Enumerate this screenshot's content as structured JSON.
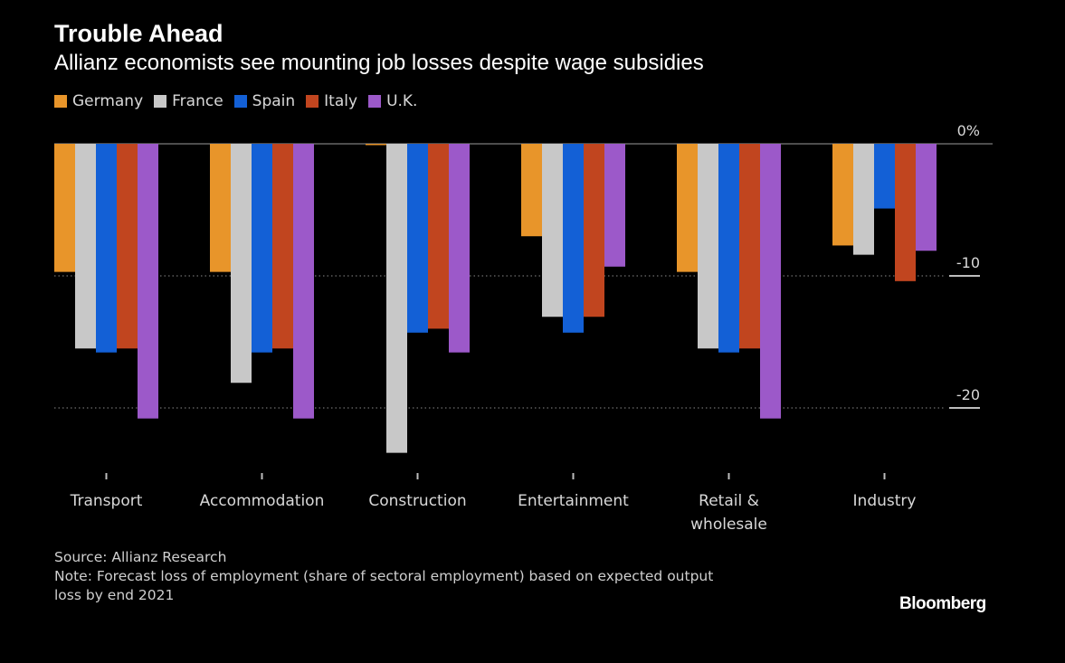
{
  "header": {
    "title": "Trouble Ahead",
    "subtitle": "Allianz economists see mounting job losses despite wage subsidies"
  },
  "footer": {
    "source": "Source: Allianz Research",
    "note_line1": "Note: Forecast loss of employment (share of sectoral employment) based on expected output",
    "note_line2": "loss by end 2021",
    "brand": "Bloomberg"
  },
  "chart_data": {
    "type": "bar",
    "title": "Trouble Ahead",
    "subtitle": "Allianz economists see mounting job losses despite wage subsidies",
    "categories": [
      [
        "Transport"
      ],
      [
        "Accommodation"
      ],
      [
        "Construction"
      ],
      [
        "Entertainment"
      ],
      [
        "Retail &",
        "wholesale"
      ],
      [
        "Industry"
      ]
    ],
    "series": [
      {
        "name": "Germany",
        "color": "#e8952a",
        "values": [
          -9.7,
          -9.7,
          -0.1,
          -7.0,
          -9.7,
          -7.7
        ]
      },
      {
        "name": "France",
        "color": "#c8c8c8",
        "values": [
          -15.5,
          -18.1,
          -23.4,
          -13.1,
          -15.5,
          -8.4
        ]
      },
      {
        "name": "Spain",
        "color": "#1360d6",
        "values": [
          -15.8,
          -15.8,
          -14.3,
          -14.3,
          -15.8,
          -4.9
        ]
      },
      {
        "name": "Italy",
        "color": "#c1451f",
        "values": [
          -15.5,
          -15.5,
          -14.0,
          -13.1,
          -15.5,
          -10.4
        ]
      },
      {
        "name": "U.K.",
        "color": "#9c59c9",
        "values": [
          -20.8,
          -20.8,
          -15.8,
          -9.3,
          -20.8,
          -8.1
        ]
      }
    ],
    "yticks": [
      {
        "value": 0,
        "label": "0%"
      },
      {
        "value": -10,
        "label": "-10"
      },
      {
        "value": -20,
        "label": "-20"
      }
    ],
    "ylim": [
      -25,
      0
    ],
    "grid": true,
    "legend_position": "top-left"
  }
}
